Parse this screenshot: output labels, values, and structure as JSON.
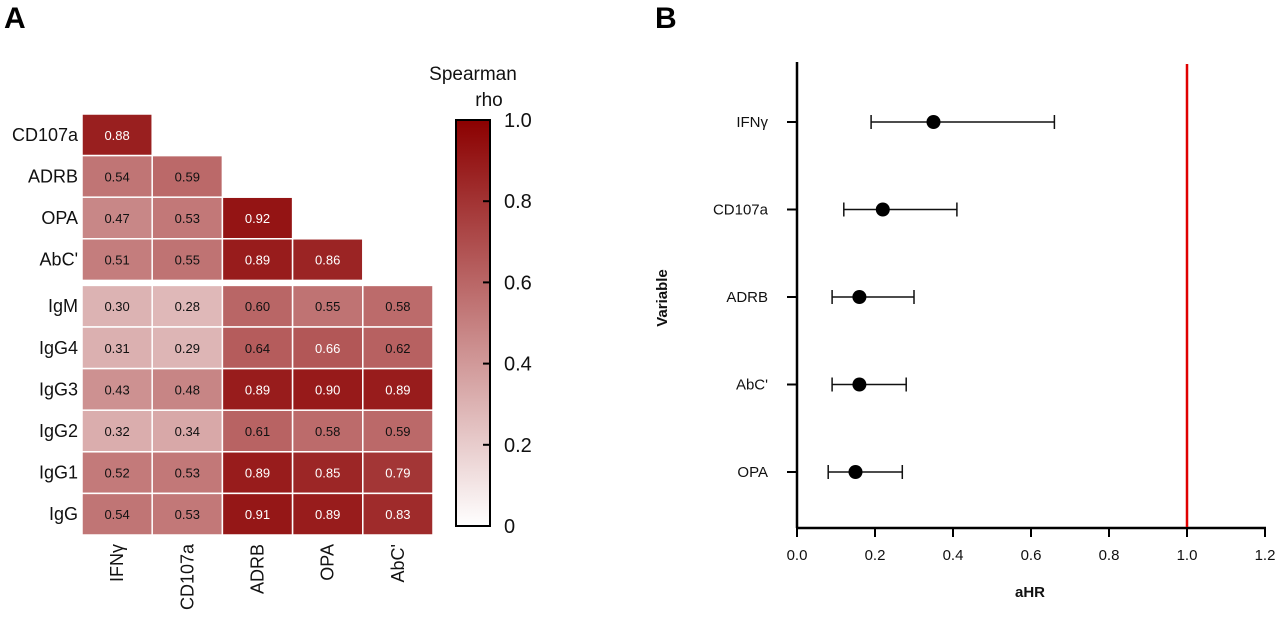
{
  "panels": {
    "a": "A",
    "b": "B"
  },
  "chart_data": [
    {
      "type": "heatmap",
      "rows": [
        "CD107a",
        "ADRB",
        "OPA",
        "AbC'",
        "IgM",
        "IgG4",
        "IgG3",
        "IgG2",
        "IgG1",
        "IgG"
      ],
      "columns": [
        "IFNγ",
        "CD107a",
        "ADRB",
        "OPA",
        "AbC'"
      ],
      "values": [
        [
          0.88,
          null,
          null,
          null,
          null
        ],
        [
          0.54,
          0.59,
          null,
          null,
          null
        ],
        [
          0.47,
          0.53,
          0.92,
          null,
          null
        ],
        [
          0.51,
          0.55,
          0.89,
          0.86,
          null
        ],
        [
          0.3,
          0.28,
          0.6,
          0.55,
          0.58
        ],
        [
          0.31,
          0.29,
          0.64,
          0.66,
          0.62
        ],
        [
          0.43,
          0.48,
          0.89,
          0.9,
          0.89
        ],
        [
          0.32,
          0.34,
          0.61,
          0.58,
          0.59
        ],
        [
          0.52,
          0.53,
          0.89,
          0.85,
          0.79
        ],
        [
          0.54,
          0.53,
          0.91,
          0.89,
          0.83
        ]
      ],
      "colorbar": {
        "title_line1": "Spearman",
        "title_line2": "rho",
        "range": [
          0,
          1
        ],
        "ticks": [
          "1.0",
          "0.8",
          "0.6",
          "0.4",
          "0.2",
          "0"
        ],
        "tick_values": [
          1.0,
          0.8,
          0.6,
          0.4,
          0.2,
          0
        ],
        "color_low": "#ffffff",
        "color_high": "#8b0000"
      }
    },
    {
      "type": "scatter",
      "subtype": "forest",
      "categories": [
        "IFNγ",
        "CD107a",
        "ADRB",
        "AbC'",
        "OPA"
      ],
      "estimates": [
        0.35,
        0.22,
        0.16,
        0.16,
        0.15
      ],
      "ci_low": [
        0.19,
        0.12,
        0.09,
        0.09,
        0.08
      ],
      "ci_high": [
        0.66,
        0.41,
        0.3,
        0.28,
        0.27
      ],
      "xlabel": "aHR",
      "ylabel": "Variable",
      "xlim": [
        0,
        1.2
      ],
      "xticks": [
        "0.0",
        "0.2",
        "0.4",
        "0.6",
        "0.8",
        "1.0",
        "1.2"
      ],
      "xtick_values": [
        0,
        0.2,
        0.4,
        0.6,
        0.8,
        1.0,
        1.2
      ],
      "reference_line": 1.0,
      "reference_color": "#e00000"
    }
  ]
}
